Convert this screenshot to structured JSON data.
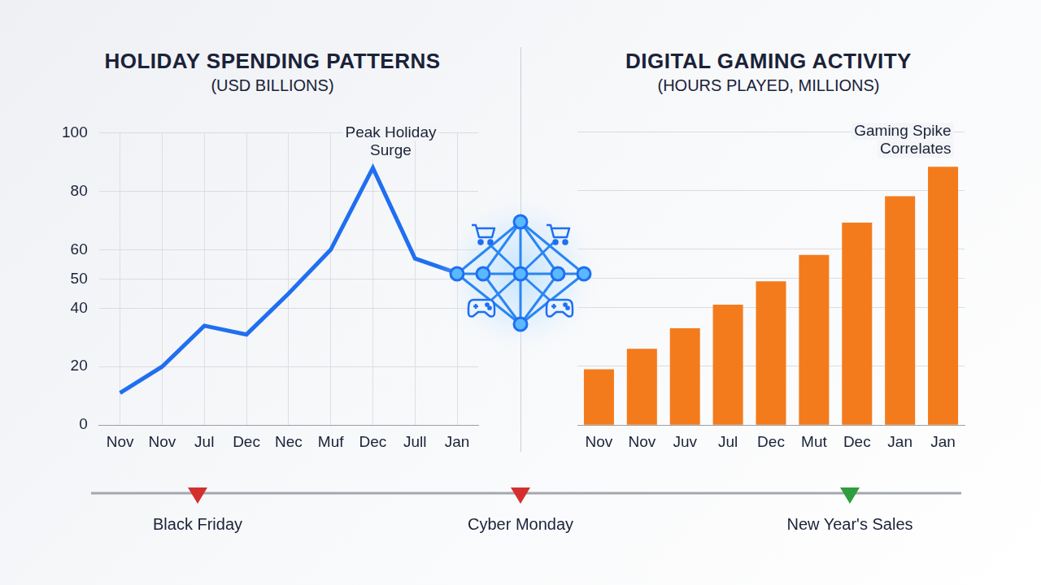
{
  "chart_data": [
    {
      "type": "line",
      "title": "HOLIDAY SPENDING PATTERNS",
      "subtitle": "(USD BILLIONS)",
      "categories": [
        "Nov",
        "Nov",
        "Jul",
        "Dec",
        "Nec",
        "Muf",
        "Dec",
        "Jull",
        "Jan"
      ],
      "values": [
        11,
        20,
        34,
        31,
        45,
        60,
        88,
        57,
        52
      ],
      "color": "#1f6ff0",
      "ylim": [
        0,
        100
      ],
      "yticks": [
        0,
        20,
        40,
        50,
        60,
        80,
        100
      ],
      "grid": true,
      "annotations": [
        "Peak Holiday Surge"
      ]
    },
    {
      "type": "bar",
      "title": "DIGITAL GAMING ACTIVITY",
      "subtitle": "(HOURS PLAYED, MILLIONS)",
      "categories": [
        "Nov",
        "Nov",
        "Juv",
        "Jul",
        "Dec",
        "Mut",
        "Dec",
        "Jan",
        "Jan"
      ],
      "values": [
        19,
        26,
        33,
        41,
        49,
        58,
        69,
        78,
        88
      ],
      "color": "#f47b1c",
      "ylim": [
        0,
        100
      ],
      "yticks": [
        0,
        20,
        40,
        50,
        60,
        80,
        100
      ],
      "grid": true,
      "tick_labels": "x",
      "annotations": [
        "Gaming Spike Correlates"
      ]
    }
  ],
  "timeline": {
    "events": [
      {
        "label": "Black Friday",
        "color": "#d32f2f"
      },
      {
        "label": "Cyber Monday",
        "color": "#d32f2f"
      },
      {
        "label": "New Year's Sales",
        "color": "#2e9e3e"
      }
    ]
  }
}
